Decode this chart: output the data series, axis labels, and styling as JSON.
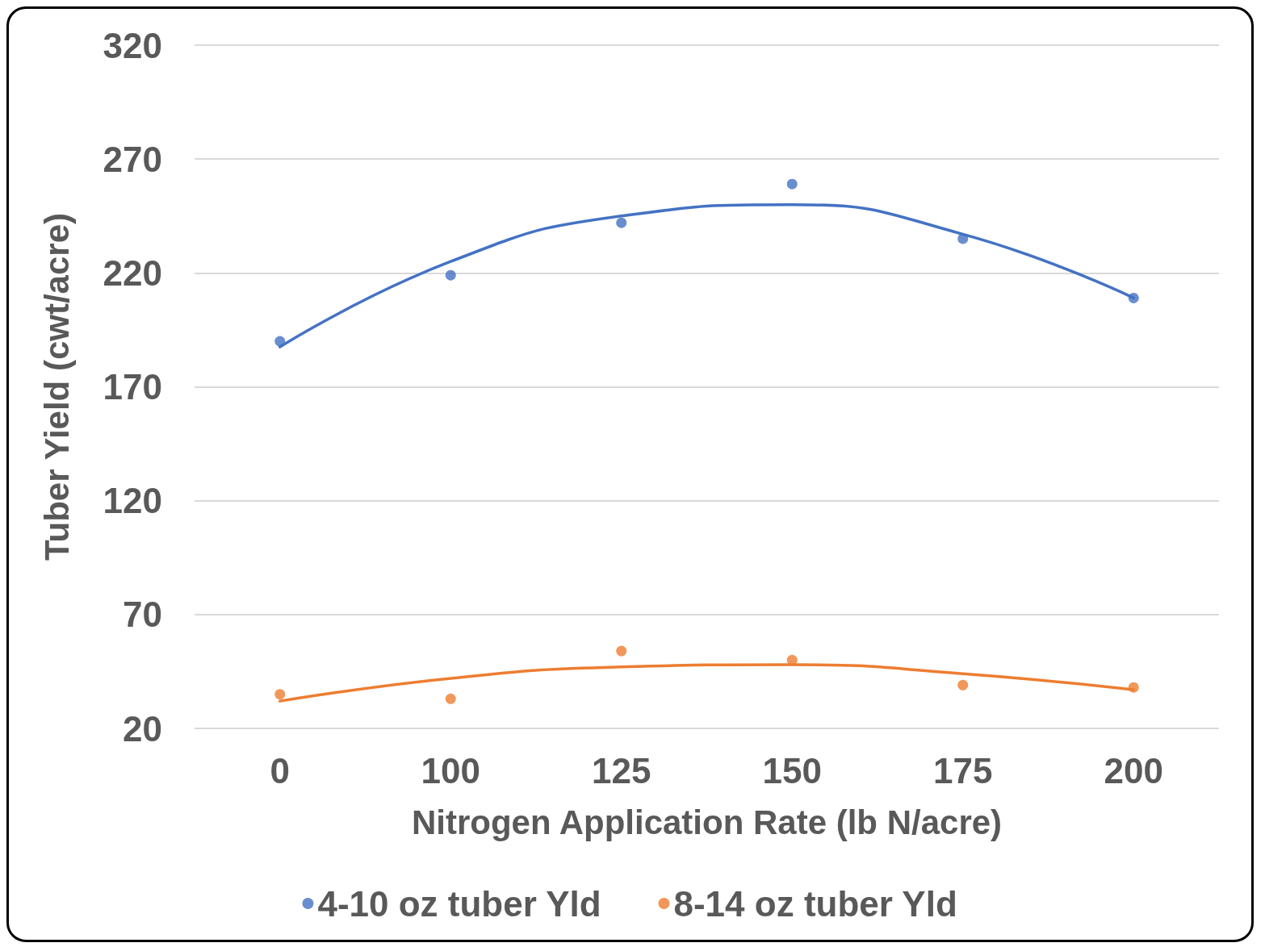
{
  "chart_data": {
    "type": "scatter",
    "xlabel": "Nitrogen Application Rate (lb N/acre)",
    "ylabel": "Tuber Yield (cwt/acre)",
    "categories": [
      "0",
      "100",
      "125",
      "150",
      "175",
      "200"
    ],
    "series": [
      {
        "name": "4-10 oz tuber Yld",
        "color": "#4472c4",
        "values": [
          190,
          219,
          242,
          259,
          235,
          209
        ]
      },
      {
        "name": "8-14 oz tuber Yld",
        "color": "#ed7d31",
        "values": [
          35,
          33,
          54,
          50,
          39,
          38
        ]
      },
      {
        "type": "line",
        "color": "#4472c4",
        "marker": "none",
        "values": [
          187.5,
          225,
          245,
          250,
          237,
          209
        ]
      },
      {
        "type": "line",
        "color": "#ed7d31",
        "marker": "none",
        "values": [
          32,
          42,
          47,
          48,
          44,
          37
        ]
      }
    ],
    "ylim": [
      20,
      320
    ],
    "yticks": [
      20,
      70,
      120,
      170,
      220,
      270,
      320
    ],
    "grid": "y",
    "legend": "bottom",
    "marker": "circle",
    "line_style": "solid"
  }
}
